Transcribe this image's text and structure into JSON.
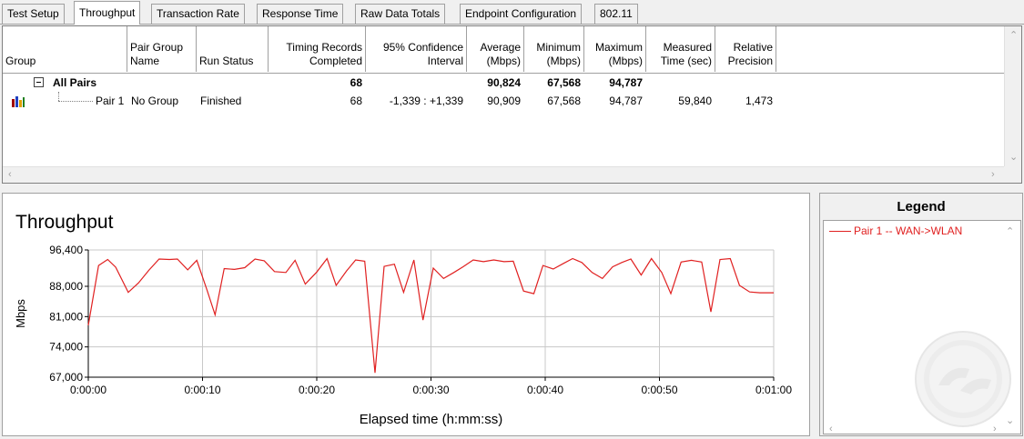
{
  "tabs": [
    {
      "label": "Test Setup",
      "active": false
    },
    {
      "label": "Throughput",
      "active": true
    },
    {
      "label": "Transaction Rate",
      "active": false
    },
    {
      "label": "Response Time",
      "active": false
    },
    {
      "label": "Raw Data Totals",
      "active": false
    },
    {
      "label": "Endpoint Configuration",
      "active": false
    },
    {
      "label": "802.11",
      "active": false
    }
  ],
  "grid": {
    "columns": [
      {
        "label": "Group"
      },
      {
        "label": "Pair Group\nName"
      },
      {
        "label": "Run Status"
      },
      {
        "label": "Timing Records\nCompleted"
      },
      {
        "label": "95% Confidence\nInterval"
      },
      {
        "label": "Average\n(Mbps)"
      },
      {
        "label": "Minimum\n(Mbps)"
      },
      {
        "label": "Maximum\n(Mbps)"
      },
      {
        "label": "Measured\nTime (sec)"
      },
      {
        "label": "Relative\nPrecision"
      }
    ],
    "summary_row": {
      "group": "All Pairs",
      "timing_records": "68",
      "average": "90,824",
      "minimum": "67,568",
      "maximum": "94,787"
    },
    "pair_row": {
      "group": "Pair 1",
      "pair_group_name": "No Group",
      "run_status": "Finished",
      "timing_records": "68",
      "confidence_interval": "-1,339 : +1,339",
      "average": "90,909",
      "minimum": "67,568",
      "maximum": "94,787",
      "measured_time": "59,840",
      "relative_precision": "1,473"
    }
  },
  "chart": {
    "title": "Throughput"
  },
  "chart_data": {
    "type": "line",
    "title": "Throughput",
    "xlabel": "Elapsed time (h:mm:ss)",
    "ylabel": "Mbps",
    "ylim": [
      67000,
      96400
    ],
    "xlim": [
      0,
      60
    ],
    "yticks": [
      "96,400",
      "88,000",
      "81,000",
      "74,000",
      "67,000"
    ],
    "yticks_values": [
      96400,
      88000,
      81000,
      74000,
      67000
    ],
    "xticks": [
      "0:00:00",
      "0:00:10",
      "0:00:20",
      "0:00:30",
      "0:00:40",
      "0:00:50",
      "0:01:00"
    ],
    "xticks_values": [
      0,
      10,
      20,
      30,
      40,
      50,
      60
    ],
    "grid": true,
    "color": "#e02020",
    "series": [
      {
        "name": "Pair 1 -- WAN->WLAN",
        "x": [
          0,
          0.9,
          1.7,
          2.4,
          3.5,
          4.4,
          5.3,
          6.2,
          7.1,
          7.8,
          8.7,
          9.5,
          10.4,
          11.1,
          11.9,
          12.8,
          13.7,
          14.6,
          15.4,
          16.3,
          17.3,
          18.1,
          19.0,
          20.0,
          20.9,
          21.7,
          22.6,
          23.4,
          24.2,
          25.1,
          25.9,
          26.8,
          27.6,
          28.5,
          29.3,
          30.2,
          31.1,
          32.0,
          32.8,
          33.7,
          34.6,
          35.5,
          36.4,
          37.2,
          38.1,
          39.0,
          39.8,
          40.7,
          41.6,
          42.4,
          43.2,
          44.1,
          45.0,
          45.9,
          46.7,
          47.5,
          48.4,
          49.3,
          50.2,
          51.0,
          51.9,
          52.8,
          53.7,
          54.5,
          55.3,
          56.2,
          57.0,
          57.9,
          58.8,
          60.0
        ],
        "y": [
          79000,
          92800,
          94200,
          92400,
          86600,
          88800,
          91700,
          94300,
          94200,
          94300,
          91800,
          94000,
          87100,
          81400,
          92100,
          91900,
          92300,
          94300,
          93900,
          91400,
          91200,
          94000,
          88500,
          91300,
          94400,
          88200,
          91500,
          94100,
          93800,
          68000,
          92600,
          93100,
          86600,
          94100,
          80200,
          92200,
          89800,
          91200,
          92500,
          94100,
          93700,
          94100,
          93700,
          93800,
          86900,
          86300,
          92800,
          92000,
          93300,
          94400,
          93500,
          91200,
          89800,
          92500,
          93500,
          94300,
          90600,
          94400,
          91200,
          86300,
          93600,
          94000,
          93600,
          82100,
          94200,
          94400,
          88200,
          86700,
          86500,
          86500
        ]
      }
    ]
  },
  "legend": {
    "title": "Legend",
    "items": [
      {
        "label": "Pair 1 -- WAN->WLAN",
        "color": "#e02020"
      }
    ]
  }
}
